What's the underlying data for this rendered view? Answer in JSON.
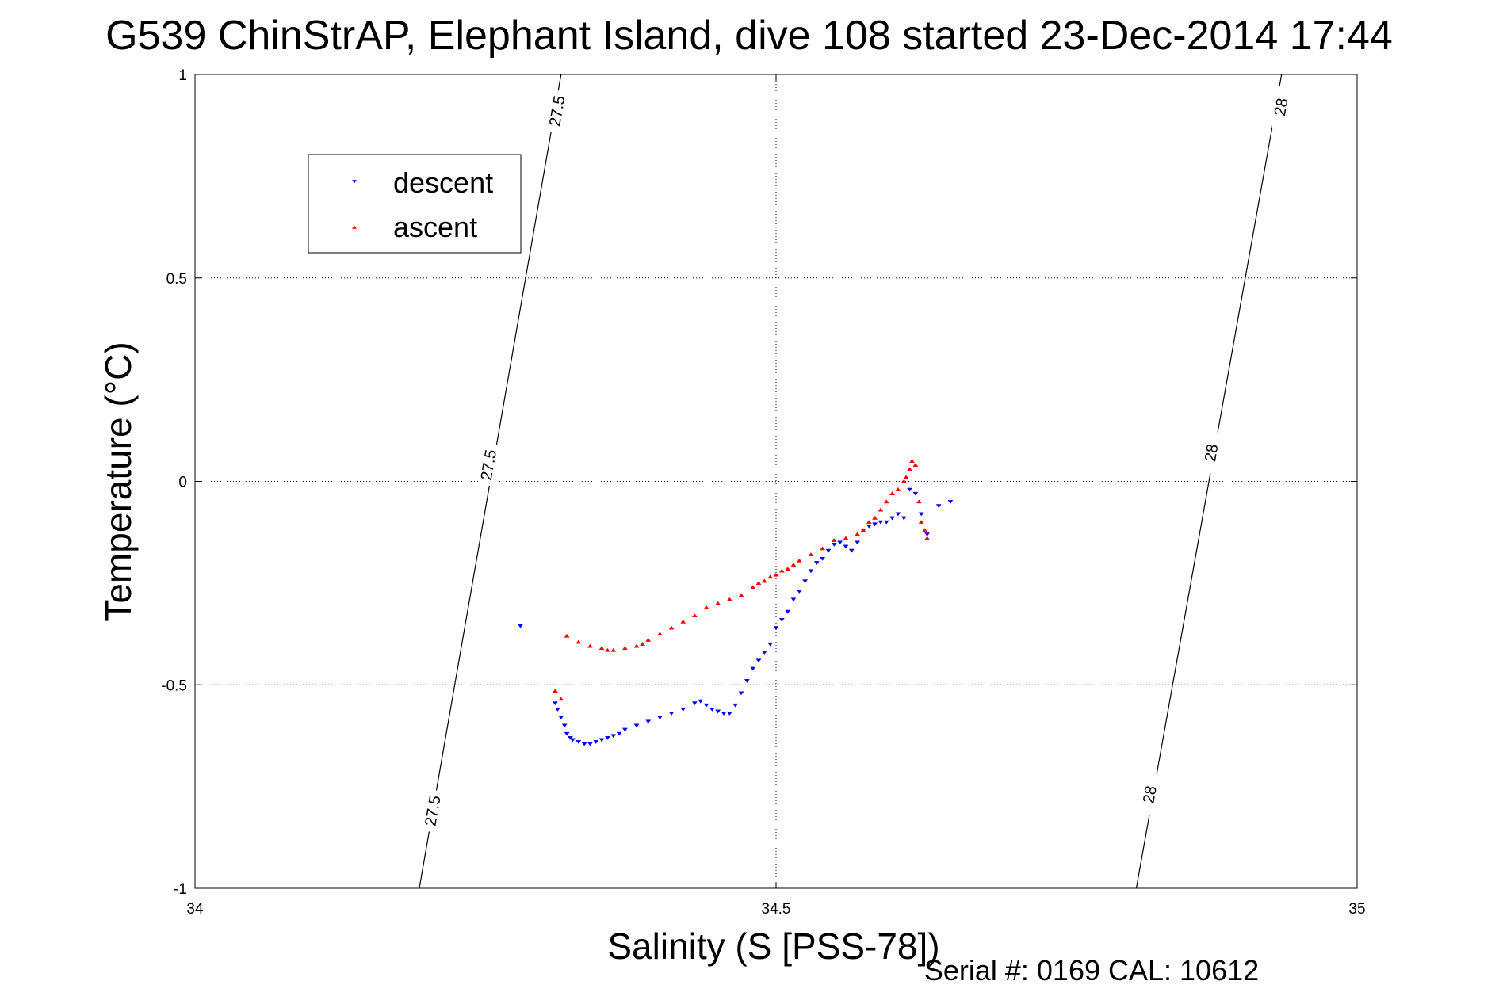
{
  "colors": {
    "descent": "#0000ff",
    "ascent": "#ff0000",
    "axes": "#000000",
    "grid": "#000000"
  },
  "footer": {
    "serial": "Serial #: 0169 CAL: 10612"
  },
  "chart_data": {
    "type": "scatter",
    "title": "G539 ChinStrAP, Elephant Island, dive 108 started 23-Dec-2014 17:44",
    "xlabel": "Salinity (S [PSS-78])",
    "ylabel": "Temperature (°C)",
    "xlim": [
      34,
      35
    ],
    "ylim": [
      -1,
      1
    ],
    "xticks": [
      34,
      34.5,
      35
    ],
    "xtick_labels": [
      "34",
      "34.5",
      "35"
    ],
    "yticks": [
      -1,
      -0.5,
      0,
      0.5,
      1
    ],
    "ytick_labels": [
      "-1",
      "-0.5",
      "0",
      "0.5",
      "1"
    ],
    "grid": true,
    "legend_position": "top-left",
    "legend": [
      "descent",
      "ascent"
    ],
    "density_contours": [
      {
        "label": "27.5",
        "line": [
          [
            34.193,
            -1
          ],
          [
            34.315,
            1
          ]
        ],
        "label_positions": [
          [
            34.205,
            -0.81
          ],
          [
            34.253,
            0.04
          ],
          [
            34.312,
            0.91
          ]
        ]
      },
      {
        "label": "28",
        "line": [
          [
            34.81,
            -1
          ],
          [
            34.935,
            1
          ]
        ],
        "label_positions": [
          [
            34.822,
            -0.77
          ],
          [
            34.875,
            0.07
          ],
          [
            34.935,
            0.92
          ]
        ]
      }
    ],
    "series": [
      {
        "name": "descent",
        "marker": "triangle-down",
        "x": [
          34.28,
          34.31,
          34.312,
          34.315,
          34.318,
          34.32,
          34.323,
          34.325,
          34.33,
          34.335,
          34.34,
          34.345,
          34.35,
          34.355,
          34.36,
          34.365,
          34.37,
          34.38,
          34.39,
          34.4,
          34.41,
          34.42,
          34.43,
          34.435,
          34.44,
          34.445,
          34.45,
          34.455,
          34.46,
          34.465,
          34.47,
          34.475,
          34.48,
          34.485,
          34.49,
          34.495,
          34.5,
          34.505,
          34.51,
          34.515,
          34.52,
          34.525,
          34.53,
          34.535,
          34.54,
          34.545,
          34.55,
          34.555,
          34.56,
          34.565,
          34.57,
          34.575,
          34.58,
          34.585,
          34.59,
          34.595,
          34.6,
          34.605,
          34.61,
          34.615,
          34.62,
          34.625,
          34.63,
          34.64,
          34.65
        ],
        "y": [
          -0.355,
          -0.545,
          -0.56,
          -0.58,
          -0.6,
          -0.62,
          -0.63,
          -0.635,
          -0.64,
          -0.645,
          -0.645,
          -0.64,
          -0.635,
          -0.63,
          -0.625,
          -0.62,
          -0.61,
          -0.6,
          -0.59,
          -0.58,
          -0.57,
          -0.56,
          -0.545,
          -0.54,
          -0.55,
          -0.56,
          -0.565,
          -0.57,
          -0.57,
          -0.55,
          -0.52,
          -0.49,
          -0.46,
          -0.44,
          -0.42,
          -0.4,
          -0.36,
          -0.34,
          -0.32,
          -0.29,
          -0.27,
          -0.245,
          -0.22,
          -0.2,
          -0.19,
          -0.17,
          -0.155,
          -0.15,
          -0.16,
          -0.17,
          -0.15,
          -0.12,
          -0.11,
          -0.105,
          -0.1,
          -0.1,
          -0.09,
          -0.08,
          -0.09,
          -0.02,
          -0.03,
          -0.08,
          -0.13,
          -0.06,
          -0.05
        ]
      },
      {
        "name": "ascent",
        "marker": "triangle-up",
        "x": [
          34.31,
          34.315,
          34.32,
          34.33,
          34.34,
          34.35,
          34.355,
          34.36,
          34.37,
          34.38,
          34.385,
          34.39,
          34.4,
          34.41,
          34.42,
          34.43,
          34.44,
          34.45,
          34.46,
          34.47,
          34.48,
          34.485,
          34.49,
          34.495,
          34.5,
          34.505,
          34.51,
          34.515,
          34.52,
          34.53,
          34.54,
          34.55,
          34.56,
          34.57,
          34.575,
          34.58,
          34.585,
          34.59,
          34.595,
          34.6,
          34.605,
          34.61,
          34.612,
          34.615,
          34.617,
          34.62,
          34.623,
          34.625,
          34.628,
          34.63
        ],
        "y": [
          -0.515,
          -0.535,
          -0.38,
          -0.395,
          -0.405,
          -0.41,
          -0.415,
          -0.415,
          -0.41,
          -0.405,
          -0.4,
          -0.39,
          -0.375,
          -0.36,
          -0.345,
          -0.33,
          -0.31,
          -0.3,
          -0.29,
          -0.28,
          -0.26,
          -0.25,
          -0.245,
          -0.235,
          -0.23,
          -0.22,
          -0.215,
          -0.205,
          -0.195,
          -0.18,
          -0.165,
          -0.145,
          -0.14,
          -0.13,
          -0.12,
          -0.1,
          -0.09,
          -0.07,
          -0.05,
          -0.03,
          -0.02,
          0.0,
          0.01,
          0.03,
          0.05,
          0.04,
          -0.05,
          -0.1,
          -0.12,
          -0.14
        ]
      }
    ]
  }
}
